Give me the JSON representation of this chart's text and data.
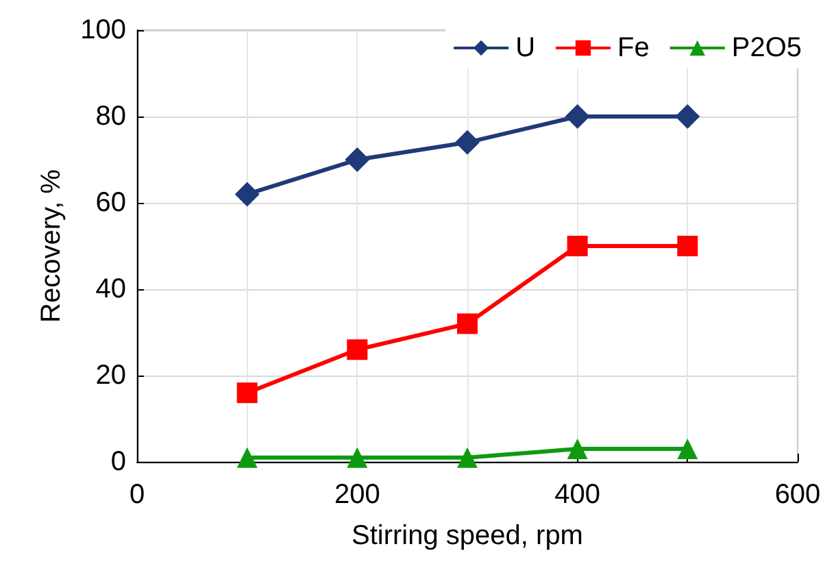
{
  "chart_data": {
    "type": "line",
    "xlabel": "Stirring speed, rpm",
    "ylabel": "Recovery, %",
    "x": [
      100,
      200,
      300,
      400,
      500
    ],
    "series": [
      {
        "name": "U",
        "color": "#1f3a78",
        "marker": "diamond",
        "values": [
          62,
          70,
          74,
          80,
          80
        ]
      },
      {
        "name": "Fe",
        "color": "#ff0000",
        "marker": "square",
        "values": [
          16,
          26,
          32,
          50,
          50
        ]
      },
      {
        "name": "P2O5",
        "color": "#0f9a0f",
        "marker": "triangle",
        "values": [
          1,
          1,
          1,
          3,
          3
        ]
      }
    ],
    "xlim": [
      0,
      600
    ],
    "xticks": [
      0,
      200,
      400,
      600
    ],
    "ylim": [
      0,
      100
    ],
    "yticks": [
      0,
      20,
      40,
      60,
      80,
      100
    ],
    "grid": true,
    "legend": "top right",
    "line_style": "solid"
  }
}
